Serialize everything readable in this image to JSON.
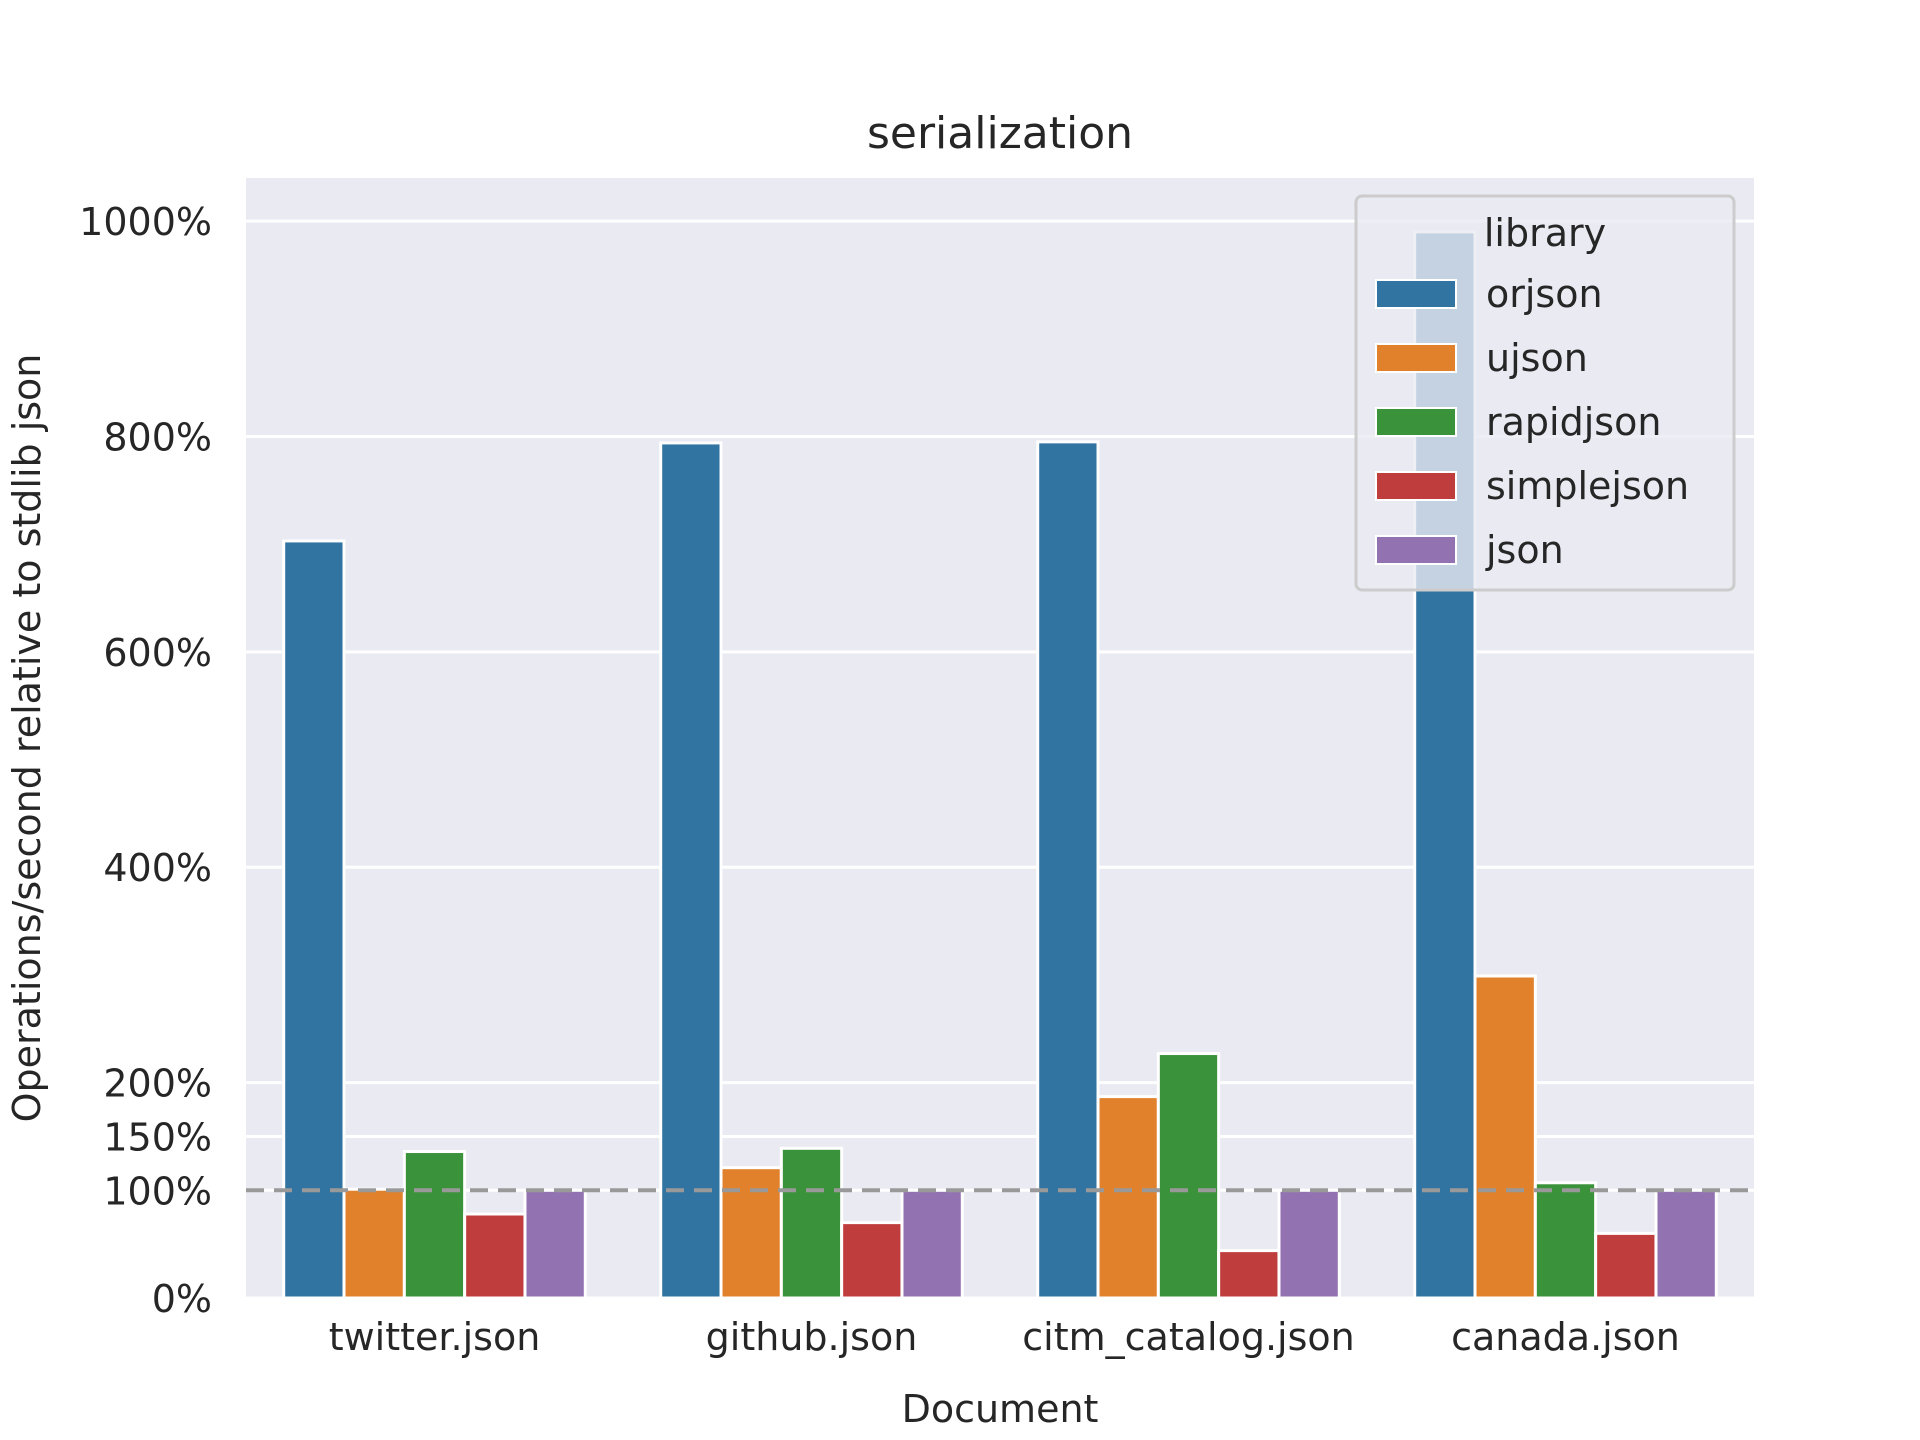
{
  "chart_data": {
    "type": "bar",
    "title": "serialization",
    "xlabel": "Document",
    "ylabel": "Operations/second relative to stdlib json",
    "categories": [
      "twitter.json",
      "github.json",
      "citm_catalog.json",
      "canada.json"
    ],
    "series": [
      {
        "name": "orjson",
        "color": "#3274a1",
        "values": [
          703,
          794,
          795,
          990
        ]
      },
      {
        "name": "ujson",
        "color": "#e1812c",
        "values": [
          101,
          121,
          187,
          299
        ]
      },
      {
        "name": "rapidjson",
        "color": "#3a923a",
        "values": [
          136,
          139,
          227,
          107
        ]
      },
      {
        "name": "simplejson",
        "color": "#c03d3e",
        "values": [
          78,
          70,
          44,
          60
        ]
      },
      {
        "name": "json",
        "color": "#9372b2",
        "values": [
          100,
          100,
          100,
          100
        ]
      }
    ],
    "yticks": [
      0,
      100,
      150,
      200,
      400,
      600,
      800,
      1000
    ],
    "ytick_labels": [
      "0%",
      "100%",
      "150%",
      "200%",
      "400%",
      "600%",
      "800%",
      "1000%"
    ],
    "ylim": [
      0,
      1040
    ],
    "reference_line": 100,
    "grid": true,
    "legend": {
      "title": "library",
      "position": "top-right"
    }
  },
  "colors": {
    "plot_background": "#eaeaf2",
    "grid": "#ffffff",
    "reference_line": "#999999"
  }
}
